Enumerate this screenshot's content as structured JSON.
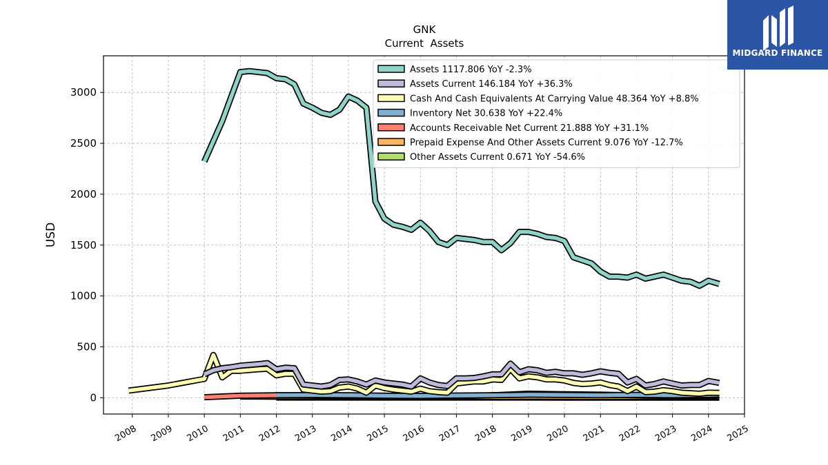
{
  "brand": {
    "name": "MIDGARD FINANCE",
    "bg": "#2b56a8"
  },
  "chart_data": {
    "type": "line",
    "title": "GNK",
    "subtitle": "Current  Assets",
    "ylabel": "USD",
    "xlabel": "",
    "xlim": [
      2007.2,
      2025.0
    ],
    "ylim": [
      -160,
      3360
    ],
    "yticks": [
      0,
      500,
      1000,
      1500,
      2000,
      2500,
      3000
    ],
    "xticks": [
      "2008",
      "2009",
      "2010",
      "2011",
      "2012",
      "2013",
      "2014",
      "2015",
      "2016",
      "2017",
      "2018",
      "2019",
      "2020",
      "2021",
      "2022",
      "2023",
      "2024",
      "2025"
    ],
    "grid": true,
    "legend_position": "top-right",
    "series": [
      {
        "name": "Assets  1117.806 YoY -2.3%",
        "color": "#8dd3c7",
        "points": [
          [
            2010.0,
            2320
          ],
          [
            2010.5,
            2720
          ],
          [
            2011.0,
            3200
          ],
          [
            2011.25,
            3210
          ],
          [
            2011.75,
            3190
          ],
          [
            2012.0,
            3140
          ],
          [
            2012.25,
            3130
          ],
          [
            2012.5,
            3080
          ],
          [
            2012.75,
            2890
          ],
          [
            2013.0,
            2850
          ],
          [
            2013.25,
            2800
          ],
          [
            2013.5,
            2780
          ],
          [
            2013.75,
            2830
          ],
          [
            2014.0,
            2960
          ],
          [
            2014.25,
            2920
          ],
          [
            2014.5,
            2850
          ],
          [
            2014.75,
            1930
          ],
          [
            2015.0,
            1760
          ],
          [
            2015.25,
            1700
          ],
          [
            2015.5,
            1680
          ],
          [
            2015.75,
            1650
          ],
          [
            2016.0,
            1720
          ],
          [
            2016.25,
            1640
          ],
          [
            2016.5,
            1530
          ],
          [
            2016.75,
            1500
          ],
          [
            2017.0,
            1570
          ],
          [
            2017.25,
            1560
          ],
          [
            2017.5,
            1550
          ],
          [
            2017.75,
            1530
          ],
          [
            2018.0,
            1530
          ],
          [
            2018.25,
            1450
          ],
          [
            2018.5,
            1520
          ],
          [
            2018.75,
            1630
          ],
          [
            2019.0,
            1630
          ],
          [
            2019.25,
            1610
          ],
          [
            2019.5,
            1580
          ],
          [
            2019.75,
            1570
          ],
          [
            2020.0,
            1540
          ],
          [
            2020.25,
            1380
          ],
          [
            2020.5,
            1350
          ],
          [
            2020.75,
            1320
          ],
          [
            2021.0,
            1240
          ],
          [
            2021.25,
            1190
          ],
          [
            2021.5,
            1190
          ],
          [
            2021.75,
            1180
          ],
          [
            2022.0,
            1210
          ],
          [
            2022.25,
            1170
          ],
          [
            2022.5,
            1190
          ],
          [
            2022.75,
            1210
          ],
          [
            2023.0,
            1180
          ],
          [
            2023.25,
            1150
          ],
          [
            2023.5,
            1140
          ],
          [
            2023.75,
            1100
          ],
          [
            2024.0,
            1150
          ],
          [
            2024.3,
            1118
          ]
        ]
      },
      {
        "name": "Assets Current  146.184 YoY +36.3%",
        "color": "#bebada",
        "points": [
          [
            2010.0,
            230
          ],
          [
            2010.25,
            270
          ],
          [
            2010.5,
            290
          ],
          [
            2010.75,
            300
          ],
          [
            2011.0,
            315
          ],
          [
            2011.5,
            330
          ],
          [
            2011.75,
            340
          ],
          [
            2012.0,
            280
          ],
          [
            2012.25,
            295
          ],
          [
            2012.5,
            290
          ],
          [
            2012.75,
            130
          ],
          [
            2013.0,
            120
          ],
          [
            2013.25,
            110
          ],
          [
            2013.5,
            125
          ],
          [
            2013.75,
            175
          ],
          [
            2014.0,
            180
          ],
          [
            2014.25,
            160
          ],
          [
            2014.5,
            130
          ],
          [
            2014.75,
            170
          ],
          [
            2015.0,
            150
          ],
          [
            2015.5,
            130
          ],
          [
            2015.75,
            110
          ],
          [
            2016.0,
            190
          ],
          [
            2016.25,
            150
          ],
          [
            2016.5,
            125
          ],
          [
            2016.75,
            115
          ],
          [
            2017.0,
            190
          ],
          [
            2017.25,
            190
          ],
          [
            2017.5,
            195
          ],
          [
            2017.75,
            210
          ],
          [
            2018.0,
            230
          ],
          [
            2018.25,
            230
          ],
          [
            2018.5,
            335
          ],
          [
            2018.75,
            250
          ],
          [
            2019.0,
            280
          ],
          [
            2019.25,
            270
          ],
          [
            2019.5,
            245
          ],
          [
            2019.75,
            255
          ],
          [
            2020.0,
            240
          ],
          [
            2020.25,
            240
          ],
          [
            2020.5,
            225
          ],
          [
            2020.75,
            240
          ],
          [
            2021.0,
            260
          ],
          [
            2021.25,
            245
          ],
          [
            2021.5,
            235
          ],
          [
            2021.75,
            150
          ],
          [
            2022.0,
            185
          ],
          [
            2022.25,
            120
          ],
          [
            2022.5,
            135
          ],
          [
            2022.75,
            160
          ],
          [
            2023.0,
            140
          ],
          [
            2023.25,
            120
          ],
          [
            2023.5,
            125
          ],
          [
            2023.75,
            125
          ],
          [
            2024.0,
            165
          ],
          [
            2024.3,
            146
          ]
        ]
      },
      {
        "name": "Cash And Cash Equivalents At Carrying Value  48.364 YoY +8.8%",
        "color": "#ffffb3",
        "points": [
          [
            2007.9,
            70
          ],
          [
            2009.0,
            120
          ],
          [
            2010.0,
            185
          ],
          [
            2010.25,
            420
          ],
          [
            2010.5,
            200
          ],
          [
            2010.75,
            265
          ],
          [
            2011.0,
            265
          ],
          [
            2011.5,
            280
          ],
          [
            2011.75,
            285
          ],
          [
            2012.0,
            220
          ],
          [
            2012.25,
            235
          ],
          [
            2012.5,
            235
          ],
          [
            2012.75,
            80
          ],
          [
            2013.0,
            70
          ],
          [
            2013.25,
            60
          ],
          [
            2013.5,
            65
          ],
          [
            2013.75,
            100
          ],
          [
            2014.0,
            110
          ],
          [
            2014.25,
            90
          ],
          [
            2014.5,
            50
          ],
          [
            2014.75,
            120
          ],
          [
            2015.0,
            95
          ],
          [
            2015.25,
            80
          ],
          [
            2015.5,
            70
          ],
          [
            2015.75,
            60
          ],
          [
            2016.0,
            90
          ],
          [
            2016.25,
            65
          ],
          [
            2016.5,
            55
          ],
          [
            2016.75,
            50
          ],
          [
            2017.0,
            140
          ],
          [
            2017.25,
            150
          ],
          [
            2017.5,
            160
          ],
          [
            2017.75,
            160
          ],
          [
            2018.0,
            180
          ],
          [
            2018.25,
            175
          ],
          [
            2018.5,
            285
          ],
          [
            2018.75,
            190
          ],
          [
            2019.0,
            210
          ],
          [
            2019.25,
            200
          ],
          [
            2019.5,
            180
          ],
          [
            2019.75,
            180
          ],
          [
            2020.0,
            170
          ],
          [
            2020.25,
            145
          ],
          [
            2020.5,
            135
          ],
          [
            2020.75,
            140
          ],
          [
            2021.0,
            150
          ],
          [
            2021.25,
            125
          ],
          [
            2021.5,
            110
          ],
          [
            2021.75,
            65
          ],
          [
            2022.0,
            110
          ],
          [
            2022.25,
            55
          ],
          [
            2022.5,
            60
          ],
          [
            2022.75,
            75
          ],
          [
            2023.0,
            65
          ],
          [
            2023.25,
            50
          ],
          [
            2023.5,
            45
          ],
          [
            2023.75,
            40
          ],
          [
            2024.0,
            50
          ],
          [
            2024.3,
            48
          ]
        ]
      },
      {
        "name": "Inventory Net  30.638 YoY +22.4%",
        "color": "#80b1d3",
        "points": [
          [
            2012.0,
            25
          ],
          [
            2013.0,
            27
          ],
          [
            2014.0,
            25
          ],
          [
            2015.0,
            20
          ],
          [
            2016.0,
            18
          ],
          [
            2017.0,
            22
          ],
          [
            2018.0,
            25
          ],
          [
            2019.0,
            30
          ],
          [
            2020.0,
            28
          ],
          [
            2021.0,
            25
          ],
          [
            2022.0,
            28
          ],
          [
            2023.0,
            25
          ],
          [
            2024.0,
            28
          ],
          [
            2024.3,
            31
          ]
        ]
      },
      {
        "name": "Accounts Receivable Net Current  21.888 YoY +31.1%",
        "color": "#fb8072",
        "points": [
          [
            2010.0,
            5
          ],
          [
            2011.0,
            20
          ],
          [
            2012.0,
            25
          ],
          [
            2013.0,
            20
          ],
          [
            2014.0,
            15
          ],
          [
            2015.0,
            12
          ],
          [
            2016.0,
            10
          ],
          [
            2017.0,
            15
          ],
          [
            2018.0,
            25
          ],
          [
            2019.0,
            40
          ],
          [
            2020.0,
            35
          ],
          [
            2021.0,
            30
          ],
          [
            2022.0,
            25
          ],
          [
            2023.0,
            18
          ],
          [
            2024.0,
            17
          ],
          [
            2024.3,
            22
          ]
        ]
      },
      {
        "name": "Prepaid Expense And Other Assets Current  9.076 YoY -12.7%",
        "color": "#fdb462",
        "points": [
          [
            2011.0,
            12
          ],
          [
            2012.0,
            10
          ],
          [
            2013.0,
            8
          ],
          [
            2014.0,
            8
          ],
          [
            2015.0,
            7
          ],
          [
            2016.0,
            6
          ],
          [
            2017.0,
            7
          ],
          [
            2018.0,
            8
          ],
          [
            2019.0,
            10
          ],
          [
            2020.0,
            9
          ],
          [
            2021.0,
            8
          ],
          [
            2022.0,
            9
          ],
          [
            2023.0,
            10
          ],
          [
            2024.0,
            10
          ],
          [
            2024.3,
            9
          ]
        ]
      },
      {
        "name": "Other Assets Current  0.671 YoY -54.6%",
        "color": "#b3de69",
        "points": [
          [
            2012.0,
            2
          ],
          [
            2013.0,
            2
          ],
          [
            2014.0,
            2
          ],
          [
            2015.0,
            2
          ],
          [
            2016.0,
            1.5
          ],
          [
            2017.0,
            1.5
          ],
          [
            2018.0,
            1.5
          ],
          [
            2019.0,
            1.5
          ],
          [
            2020.0,
            1.2
          ],
          [
            2021.0,
            1.2
          ],
          [
            2022.0,
            1
          ],
          [
            2023.0,
            1
          ],
          [
            2024.0,
            1
          ],
          [
            2024.3,
            0.7
          ]
        ]
      }
    ]
  }
}
